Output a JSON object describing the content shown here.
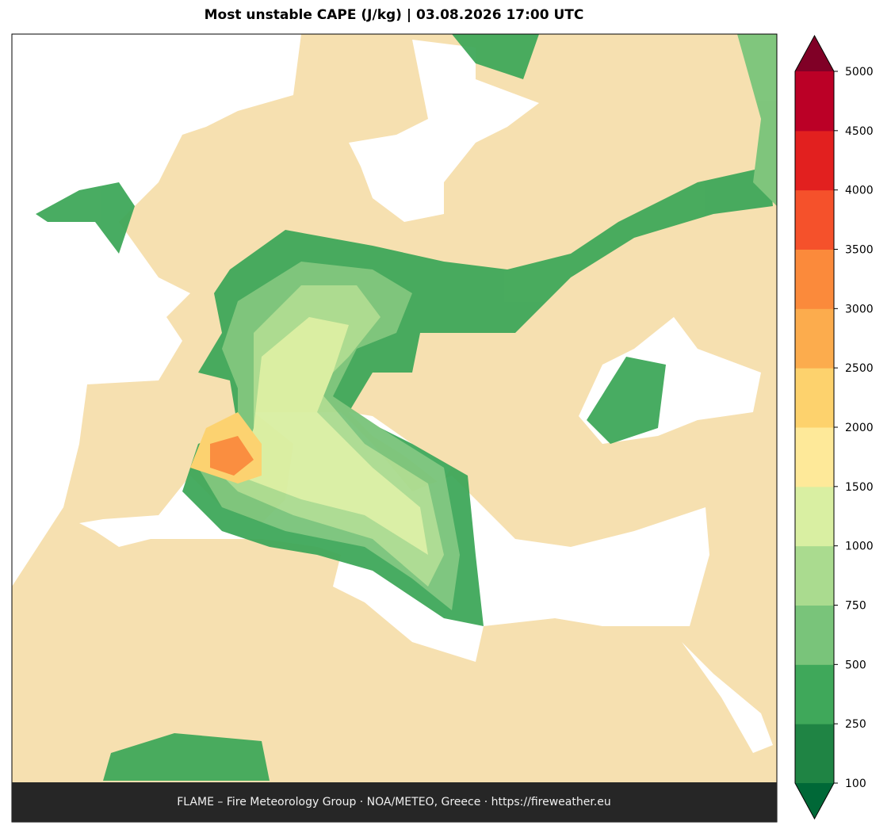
{
  "title": "Most unstable CAPE (J/kg)  |  03.08.2026 17:00 UTC",
  "footer": "FLAME – Fire Meteorology Group · NOA/METEO, Greece · https://fireweather.eu",
  "colorbar": {
    "levels": [
      100,
      250,
      500,
      750,
      1000,
      1500,
      2000,
      2500,
      3000,
      3500,
      4000,
      4500,
      5000
    ],
    "colors": [
      "#1f8444",
      "#3fa85a",
      "#79c47a",
      "#aadb8f",
      "#d9efa2",
      "#fee999",
      "#fdd26d",
      "#fcac4d",
      "#fb8a3b",
      "#f5512b",
      "#e2201f",
      "#bb0026"
    ],
    "under_color": "#006837",
    "over_color": "#800026"
  }
}
